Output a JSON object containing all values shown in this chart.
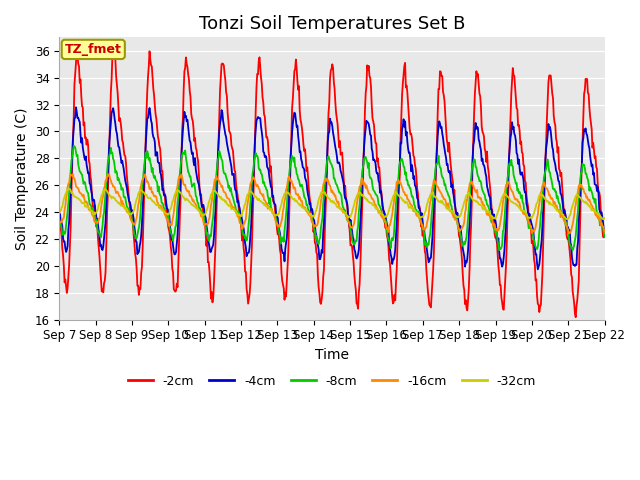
{
  "title": "Tonzi Soil Temperatures Set B",
  "xlabel": "Time",
  "ylabel": "Soil Temperature (C)",
  "ylim": [
    16,
    37
  ],
  "yticks": [
    16,
    18,
    20,
    22,
    24,
    26,
    28,
    30,
    32,
    34,
    36
  ],
  "x_tick_labels": [
    "Sep 7",
    "Sep 8",
    "Sep 9",
    "Sep 10",
    "Sep 11",
    "Sep 12",
    "Sep 13",
    "Sep 14",
    "Sep 15",
    "Sep 16",
    "Sep 17",
    "Sep 18",
    "Sep 19",
    "Sep 20",
    "Sep 21",
    "Sep 22"
  ],
  "line_colors": [
    "#ff0000",
    "#0000cc",
    "#00cc00",
    "#ff8800",
    "#cccc00"
  ],
  "line_labels": [
    "-2cm",
    "-4cm",
    "-8cm",
    "-16cm",
    "-32cm"
  ],
  "bg_color": "#e8e8e8",
  "annotation_text": "TZ_fmet",
  "annotation_bg": "#ffff99",
  "annotation_border": "#999900",
  "title_fontsize": 13,
  "axis_label_fontsize": 10,
  "tick_fontsize": 8.5,
  "figsize": [
    6.4,
    4.8
  ],
  "dpi": 100
}
